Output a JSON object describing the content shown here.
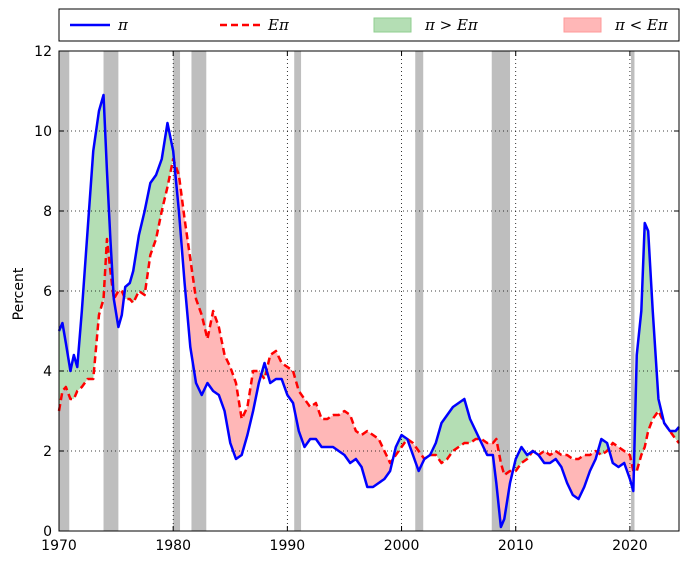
{
  "chart_data": {
    "type": "line",
    "title": "",
    "xlabel": "",
    "ylabel": "Percent",
    "xlim": [
      1970.0,
      2024.3
    ],
    "ylim": [
      0,
      12
    ],
    "xticks": [
      1970,
      1980,
      1990,
      2000,
      2010,
      2020
    ],
    "yticks": [
      0,
      2,
      4,
      6,
      8,
      10,
      12
    ],
    "xtick_labels": [
      "1970",
      "1980",
      "1990",
      "2000",
      "2010",
      "2020"
    ],
    "ytick_labels": [
      "0",
      "2",
      "4",
      "6",
      "8",
      "10",
      "12"
    ],
    "grid": true,
    "legend_position": "top",
    "legend": [
      {
        "key": "pi",
        "label": "π",
        "kind": "line",
        "color": "#0000ff",
        "style": "solid"
      },
      {
        "key": "epi",
        "label": "Eπ",
        "kind": "line",
        "color": "#ff0000",
        "style": "dashed"
      },
      {
        "key": "above",
        "label": "π > Eπ",
        "kind": "fill",
        "color": "#b4deb4"
      },
      {
        "key": "below",
        "label": "π < Eπ",
        "kind": "fill",
        "color": "#ffb7b7"
      }
    ],
    "recessions": [
      [
        1970.0,
        1970.9
      ],
      [
        1973.9,
        1975.2
      ],
      [
        1980.0,
        1980.6
      ],
      [
        1981.6,
        1982.9
      ],
      [
        1990.6,
        1991.2
      ],
      [
        2001.2,
        2001.9
      ],
      [
        2007.9,
        2009.5
      ],
      [
        2020.1,
        2020.4
      ]
    ],
    "series": [
      {
        "name": "π",
        "color": "#0000ff",
        "x": [
          1970.0,
          1970.3,
          1970.6,
          1971.0,
          1971.3,
          1971.6,
          1972.0,
          1972.5,
          1973.0,
          1973.5,
          1973.9,
          1974.2,
          1974.5,
          1974.8,
          1975.2,
          1975.5,
          1975.8,
          1976.2,
          1976.5,
          1977.0,
          1977.5,
          1978.0,
          1978.5,
          1979.0,
          1979.5,
          1980.0,
          1980.5,
          1981.0,
          1981.5,
          1982.0,
          1982.5,
          1983.0,
          1983.5,
          1984.0,
          1984.5,
          1985.0,
          1985.5,
          1986.0,
          1986.5,
          1987.0,
          1987.5,
          1988.0,
          1988.5,
          1989.0,
          1989.5,
          1990.0,
          1990.5,
          1991.0,
          1991.5,
          1992.0,
          1992.5,
          1993.0,
          1993.5,
          1994.0,
          1994.5,
          1995.0,
          1995.5,
          1996.0,
          1996.5,
          1997.0,
          1997.5,
          1998.0,
          1998.5,
          1999.0,
          1999.5,
          2000.0,
          2000.5,
          2001.0,
          2001.5,
          2002.0,
          2002.5,
          2003.0,
          2003.5,
          2004.0,
          2004.5,
          2005.0,
          2005.5,
          2006.0,
          2006.5,
          2007.0,
          2007.5,
          2008.0,
          2008.3,
          2008.7,
          2009.0,
          2009.5,
          2010.0,
          2010.5,
          2011.0,
          2011.5,
          2012.0,
          2012.5,
          2013.0,
          2013.5,
          2014.0,
          2014.5,
          2015.0,
          2015.5,
          2016.0,
          2016.5,
          2017.0,
          2017.5,
          2018.0,
          2018.5,
          2019.0,
          2019.5,
          2020.0,
          2020.3,
          2020.6,
          2021.0,
          2021.3,
          2021.6,
          2022.0,
          2022.5,
          2023.0,
          2023.5,
          2024.0,
          2024.3
        ],
        "values": [
          5.0,
          5.2,
          4.7,
          4.0,
          4.4,
          4.1,
          5.5,
          7.5,
          9.5,
          10.5,
          10.9,
          9.0,
          7.3,
          5.8,
          5.1,
          5.4,
          6.1,
          6.2,
          6.5,
          7.4,
          8.0,
          8.7,
          8.9,
          9.3,
          10.2,
          9.5,
          8.0,
          6.2,
          4.6,
          3.7,
          3.4,
          3.7,
          3.5,
          3.4,
          3.0,
          2.2,
          1.8,
          1.9,
          2.4,
          3.0,
          3.7,
          4.2,
          3.7,
          3.8,
          3.8,
          3.4,
          3.2,
          2.5,
          2.1,
          2.3,
          2.3,
          2.1,
          2.1,
          2.1,
          2.0,
          1.9,
          1.7,
          1.8,
          1.6,
          1.1,
          1.1,
          1.2,
          1.3,
          1.5,
          2.1,
          2.4,
          2.3,
          1.9,
          1.5,
          1.8,
          1.9,
          2.2,
          2.7,
          2.9,
          3.1,
          3.2,
          3.3,
          2.8,
          2.5,
          2.2,
          1.9,
          1.9,
          1.2,
          0.1,
          0.3,
          1.2,
          1.8,
          2.1,
          1.9,
          2.0,
          1.9,
          1.7,
          1.7,
          1.8,
          1.6,
          1.2,
          0.9,
          0.8,
          1.1,
          1.5,
          1.8,
          2.3,
          2.2,
          1.7,
          1.6,
          1.7,
          1.3,
          1.0,
          4.4,
          5.5,
          7.7,
          7.5,
          5.5,
          3.3,
          2.7,
          2.5,
          2.5,
          2.6
        ]
      },
      {
        "name": "Eπ",
        "color": "#ff0000",
        "x": [
          1970.0,
          1970.3,
          1970.6,
          1971.0,
          1971.3,
          1971.6,
          1972.0,
          1972.5,
          1973.0,
          1973.5,
          1973.9,
          1974.2,
          1974.5,
          1974.8,
          1975.2,
          1975.5,
          1975.8,
          1976.2,
          1976.5,
          1977.0,
          1977.5,
          1978.0,
          1978.5,
          1979.0,
          1979.5,
          1980.0,
          1980.5,
          1981.0,
          1981.5,
          1982.0,
          1982.5,
          1983.0,
          1983.5,
          1984.0,
          1984.5,
          1985.0,
          1985.5,
          1986.0,
          1986.5,
          1987.0,
          1987.5,
          1988.0,
          1988.5,
          1989.0,
          1989.5,
          1990.0,
          1990.5,
          1991.0,
          1991.5,
          1992.0,
          1992.5,
          1993.0,
          1993.5,
          1994.0,
          1994.5,
          1995.0,
          1995.5,
          1996.0,
          1996.5,
          1997.0,
          1997.5,
          1998.0,
          1998.5,
          1999.0,
          1999.5,
          2000.0,
          2000.5,
          2001.0,
          2001.5,
          2002.0,
          2002.5,
          2003.0,
          2003.5,
          2004.0,
          2004.5,
          2005.0,
          2005.5,
          2006.0,
          2006.5,
          2007.0,
          2007.5,
          2008.0,
          2008.3,
          2008.7,
          2009.0,
          2009.5,
          2010.0,
          2010.5,
          2011.0,
          2011.5,
          2012.0,
          2012.5,
          2013.0,
          2013.5,
          2014.0,
          2014.5,
          2015.0,
          2015.5,
          2016.0,
          2016.5,
          2017.0,
          2017.5,
          2018.0,
          2018.5,
          2019.0,
          2019.5,
          2020.0,
          2020.3,
          2020.6,
          2021.0,
          2021.3,
          2021.6,
          2022.0,
          2022.5,
          2023.0,
          2023.5,
          2024.0,
          2024.3
        ],
        "values": [
          3.0,
          3.5,
          3.6,
          3.3,
          3.3,
          3.5,
          3.6,
          3.8,
          3.8,
          5.4,
          5.8,
          7.3,
          6.5,
          5.8,
          6.0,
          6.0,
          5.8,
          5.8,
          5.7,
          6.0,
          5.9,
          6.9,
          7.3,
          8.0,
          8.6,
          9.3,
          8.9,
          7.8,
          6.8,
          5.8,
          5.4,
          4.8,
          5.5,
          5.1,
          4.4,
          4.1,
          3.7,
          2.8,
          3.1,
          4.0,
          4.0,
          3.8,
          4.4,
          4.5,
          4.2,
          4.1,
          4.0,
          3.5,
          3.3,
          3.1,
          3.2,
          2.8,
          2.8,
          2.9,
          2.9,
          3.0,
          2.9,
          2.5,
          2.4,
          2.5,
          2.4,
          2.3,
          2.0,
          1.7,
          1.9,
          2.1,
          2.3,
          2.2,
          2.0,
          1.8,
          1.9,
          1.9,
          1.7,
          1.8,
          2.0,
          2.1,
          2.2,
          2.2,
          2.3,
          2.3,
          2.2,
          2.2,
          2.3,
          1.7,
          1.4,
          1.5,
          1.5,
          1.7,
          1.8,
          2.0,
          1.9,
          2.0,
          1.9,
          2.0,
          1.9,
          1.9,
          1.8,
          1.8,
          1.9,
          1.9,
          2.0,
          1.9,
          2.0,
          2.2,
          2.1,
          2.0,
          1.9,
          1.5,
          1.5,
          1.9,
          2.1,
          2.5,
          2.8,
          3.0,
          2.7,
          2.5,
          2.3,
          2.2
        ]
      }
    ]
  }
}
